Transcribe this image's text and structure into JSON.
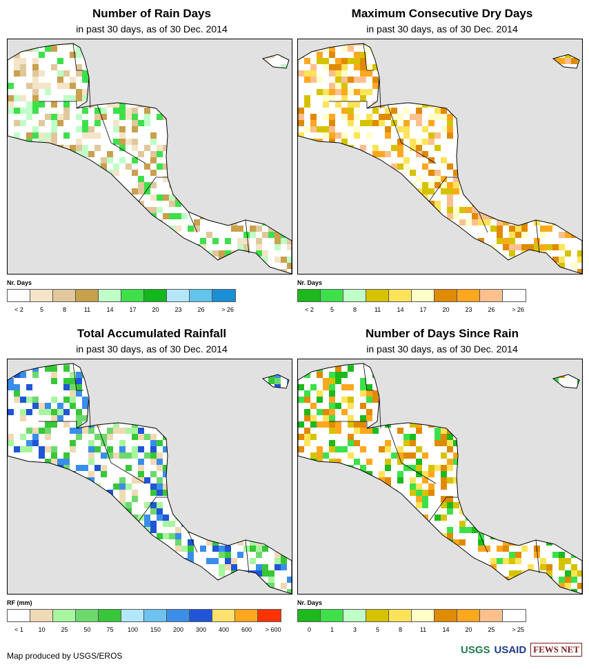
{
  "panels": [
    {
      "id": "rain-days",
      "title": "Number of Rain Days",
      "subtitle": "in past 30 days, as of 30 Dec. 2014",
      "legend_title": "Nr. Days",
      "legend_colors": [
        "#ffffff",
        "#f5e4c8",
        "#e0c89c",
        "#c9a04e",
        "#bfffc8",
        "#3ee04a",
        "#12b71d",
        "#b4e8f8",
        "#63c4ec",
        "#1b8fd6"
      ],
      "legend_labels": [
        "< 2",
        "5",
        "8",
        "11",
        "14",
        "17",
        "20",
        "23",
        "26",
        "> 26"
      ],
      "palette": [
        "#ffffff",
        "#f5e4c8",
        "#e0c89c",
        "#c9a04e",
        "#bfffc8",
        "#3ee04a"
      ]
    },
    {
      "id": "dry-days",
      "title": "Maximum Consecutive Dry Days",
      "subtitle": "in past 30 days, as of 30 Dec. 2014",
      "legend_title": "Nr. Days",
      "legend_colors": [
        "#1db91d",
        "#3ee04a",
        "#bfffc8",
        "#d6c300",
        "#fce35a",
        "#ffffc8",
        "#e08a00",
        "#ffa71e",
        "#fcc08e",
        "#ffffff"
      ],
      "legend_labels": [
        "< 2",
        "5",
        "8",
        "11",
        "14",
        "17",
        "20",
        "23",
        "26",
        "> 26"
      ],
      "palette": [
        "#d6c300",
        "#fce35a",
        "#ffffc8",
        "#e08a00",
        "#ffa71e",
        "#ffffff",
        "#fcc08e"
      ]
    },
    {
      "id": "total-rain",
      "title": "Total Accumulated Rainfall",
      "subtitle": "in past 30 days, as of 30 Dec. 2014",
      "legend_title": "RF (mm)",
      "legend_colors": [
        "#ffffff",
        "#f0d9b5",
        "#a8f5a0",
        "#6dd96d",
        "#38c738",
        "#b2e8fa",
        "#6ec2f0",
        "#3a8eea",
        "#1f55d6",
        "#ffe26e",
        "#ffa71e",
        "#ff3300"
      ],
      "legend_labels": [
        "< 1",
        "10",
        "25",
        "50",
        "75",
        "100",
        "150",
        "200",
        "300",
        "400",
        "600",
        "> 600"
      ],
      "palette": [
        "#ffffff",
        "#f0d9b5",
        "#a8f5a0",
        "#6dd96d",
        "#38c738",
        "#3a8eea",
        "#1f55d6"
      ]
    },
    {
      "id": "days-since-rain",
      "title": "Number of Days Since Rain",
      "subtitle": "in past 30 days, as of 30 Dec. 2014",
      "legend_title": "Nr. Days",
      "legend_colors": [
        "#1db91d",
        "#3ee04a",
        "#bfffc8",
        "#d6c300",
        "#fce35a",
        "#ffffc8",
        "#e08a00",
        "#ffa71e",
        "#fcc08e",
        "#ffffff"
      ],
      "legend_labels": [
        "0",
        "1",
        "3",
        "5",
        "8",
        "11",
        "14",
        "20",
        "25",
        "> 25"
      ],
      "palette": [
        "#d6c300",
        "#ffa71e",
        "#e08a00",
        "#ffffff",
        "#3ee04a",
        "#1db91d",
        "#fce35a"
      ]
    }
  ],
  "footer": {
    "credit": "Map produced by USGS/EROS"
  },
  "logos": {
    "usgs": "USGS",
    "usaid": "USAID",
    "fews": "FEWS NET"
  }
}
